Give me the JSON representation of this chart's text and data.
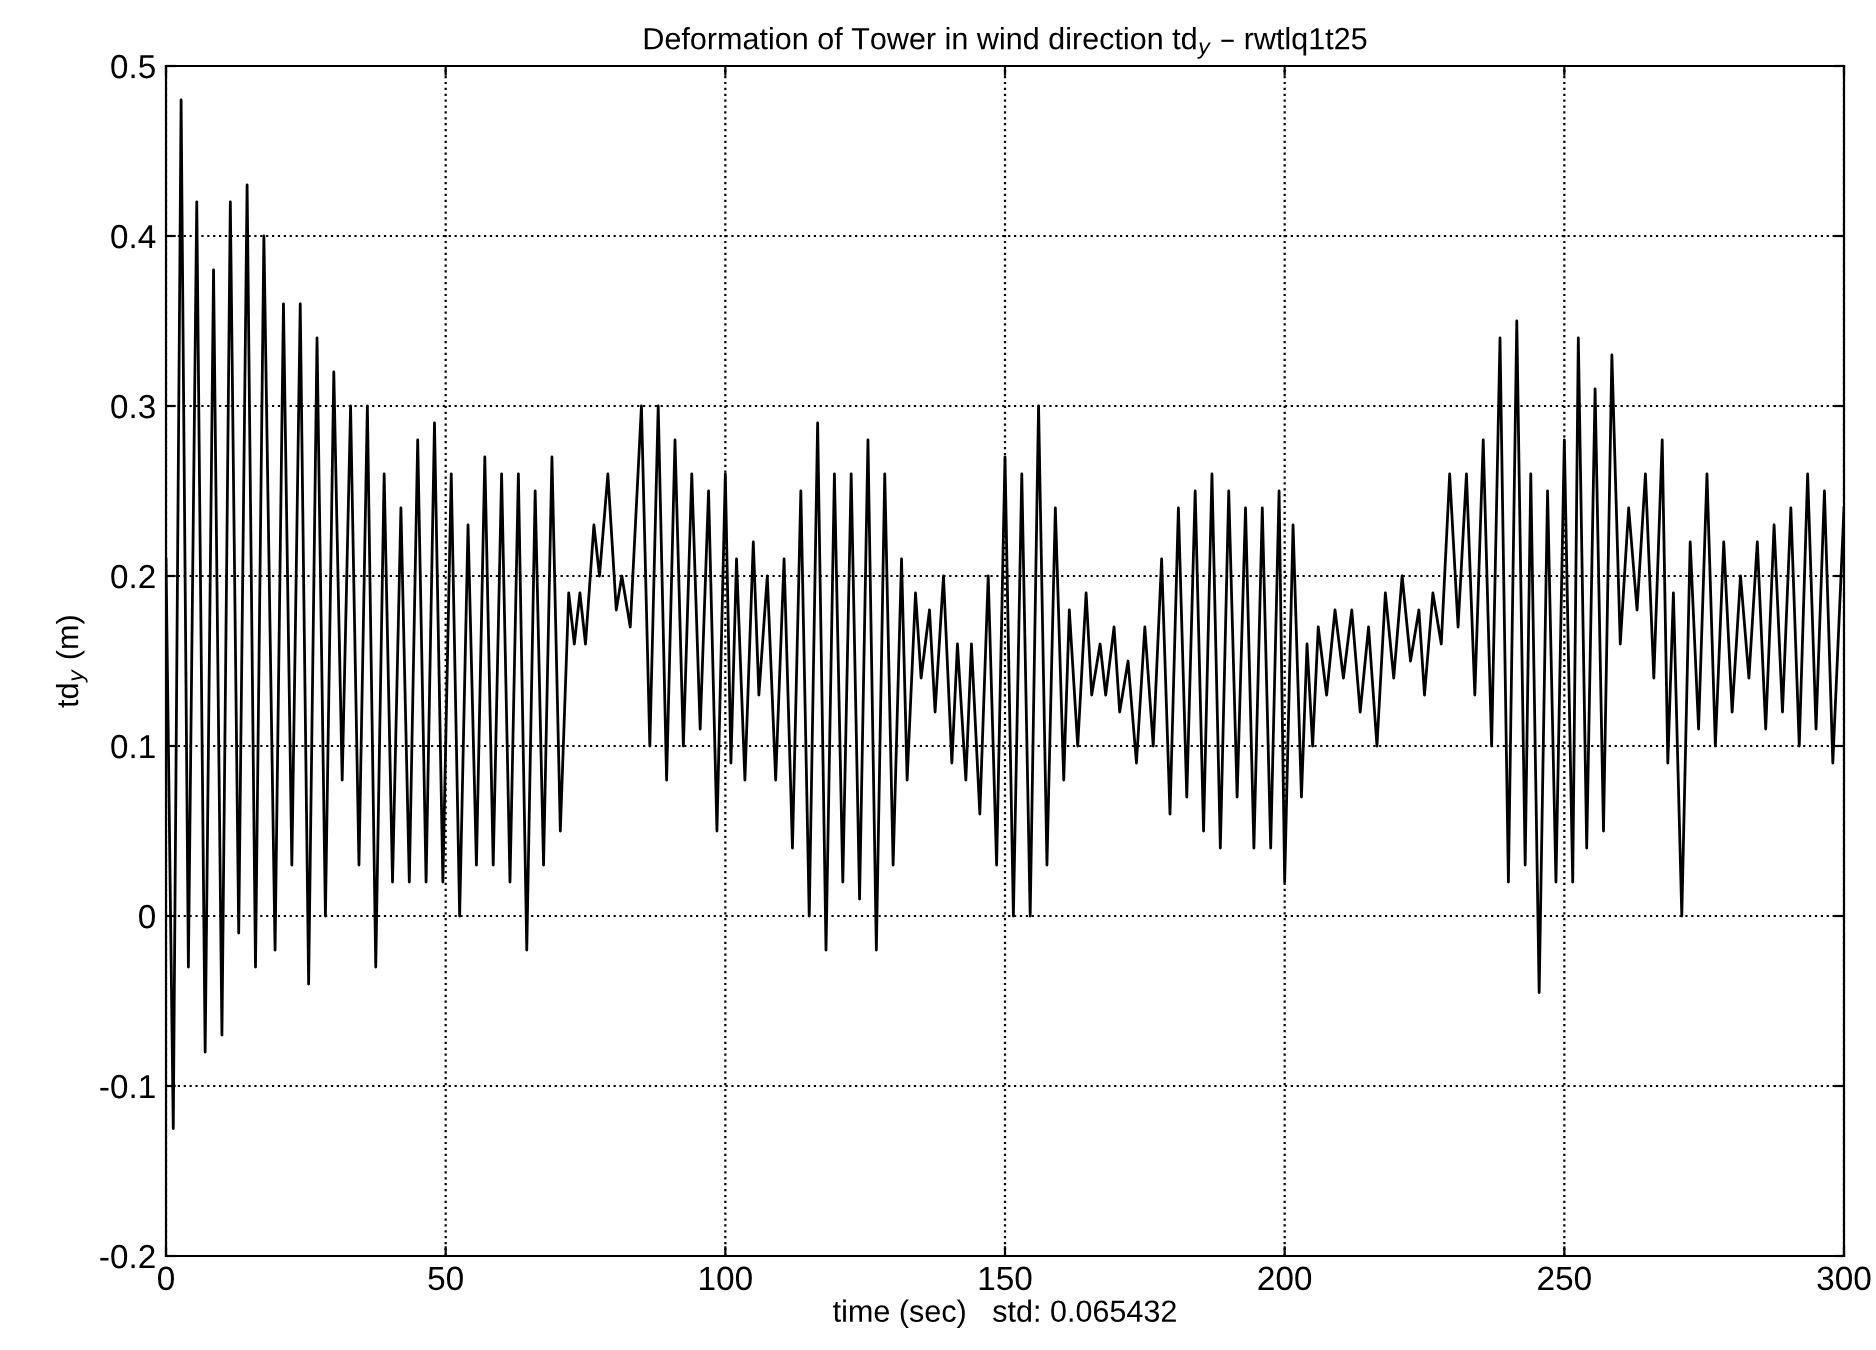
{
  "chart_data": {
    "type": "line",
    "title": "Deformation of Tower in wind direction td$_{y}$ – rwtlq1t25",
    "xlabel": "time (sec)   std: 0.065432",
    "ylabel": "td$_{y}$ (m)",
    "series": [
      {
        "color": "#000000",
        "x": [
          0,
          1.3,
          2.7,
          4,
          5.5,
          7,
          8.5,
          10,
          11.5,
          13,
          14.5,
          16,
          17.5,
          19.5,
          21,
          22.5,
          24,
          25.5,
          27,
          28.5,
          30,
          31.5,
          33,
          34.5,
          36,
          37.5,
          39,
          40.5,
          42,
          43.5,
          45,
          46.5,
          48,
          49.5,
          51,
          52.5,
          54,
          55.5,
          57,
          58.5,
          60,
          61.5,
          63,
          64.5,
          66,
          67.5,
          69,
          70.5,
          72,
          73,
          74,
          75,
          76.5,
          77.5,
          79,
          80.5,
          81.5,
          83,
          85,
          86.5,
          88,
          89.5,
          91,
          92.5,
          94,
          95.5,
          97,
          98.5,
          100,
          101,
          102,
          103.5,
          105,
          106,
          107.5,
          109,
          110.5,
          112,
          113.5,
          115,
          116.5,
          118,
          119.5,
          121,
          122.5,
          124,
          125.5,
          127,
          128.5,
          130,
          131.5,
          132.5,
          134,
          135,
          136.5,
          137.5,
          139,
          140.5,
          141.5,
          143,
          144,
          145.5,
          147,
          148.5,
          150,
          151.5,
          153,
          154.5,
          156,
          157.5,
          159,
          160.5,
          161.5,
          163,
          164.5,
          165.5,
          167,
          168,
          169.5,
          170.5,
          172,
          173.5,
          175,
          176.5,
          178,
          179.5,
          181,
          182.5,
          184,
          185.5,
          187,
          188.5,
          190,
          191.5,
          193,
          194.5,
          196,
          197.5,
          199,
          200,
          201.5,
          203,
          204,
          205,
          206,
          207.5,
          209,
          210.5,
          212,
          213.5,
          215,
          216.5,
          218,
          219.5,
          221,
          222.5,
          224,
          225,
          226.5,
          228,
          229.5,
          231,
          232.5,
          234,
          235.5,
          237,
          238.5,
          240,
          241.5,
          243,
          244,
          245.5,
          247,
          248.5,
          250,
          251.5,
          252.5,
          254,
          255.5,
          257,
          258.5,
          260,
          261.5,
          263,
          264.5,
          266,
          267.5,
          268.5,
          269.5,
          271,
          272.5,
          274,
          275.5,
          277,
          278.5,
          280,
          281.5,
          283,
          284.5,
          286,
          287.5,
          289,
          290.5,
          292,
          293.5,
          295,
          296.5,
          298,
          300
        ],
        "values": [
          0.21,
          -0.125,
          0.48,
          -0.03,
          0.42,
          -0.08,
          0.38,
          -0.07,
          0.42,
          -0.01,
          0.43,
          -0.03,
          0.4,
          -0.02,
          0.36,
          0.03,
          0.36,
          -0.04,
          0.34,
          0.0,
          0.32,
          0.08,
          0.3,
          0.03,
          0.3,
          -0.03,
          0.26,
          0.02,
          0.24,
          0.02,
          0.28,
          0.02,
          0.29,
          0.02,
          0.26,
          0.0,
          0.23,
          0.03,
          0.27,
          0.03,
          0.26,
          0.02,
          0.26,
          -0.02,
          0.25,
          0.03,
          0.27,
          0.05,
          0.19,
          0.16,
          0.19,
          0.16,
          0.23,
          0.2,
          0.26,
          0.18,
          0.2,
          0.17,
          0.3,
          0.1,
          0.3,
          0.08,
          0.28,
          0.1,
          0.26,
          0.11,
          0.25,
          0.05,
          0.26,
          0.09,
          0.21,
          0.08,
          0.22,
          0.13,
          0.2,
          0.08,
          0.21,
          0.04,
          0.25,
          0.0,
          0.29,
          -0.02,
          0.26,
          0.02,
          0.26,
          0.01,
          0.28,
          -0.02,
          0.26,
          0.03,
          0.21,
          0.08,
          0.19,
          0.14,
          0.18,
          0.12,
          0.2,
          0.09,
          0.16,
          0.08,
          0.16,
          0.06,
          0.2,
          0.03,
          0.27,
          0.0,
          0.26,
          0.0,
          0.3,
          0.03,
          0.24,
          0.08,
          0.18,
          0.1,
          0.19,
          0.13,
          0.16,
          0.13,
          0.17,
          0.12,
          0.15,
          0.09,
          0.17,
          0.1,
          0.21,
          0.06,
          0.24,
          0.07,
          0.25,
          0.05,
          0.26,
          0.04,
          0.25,
          0.07,
          0.24,
          0.04,
          0.24,
          0.04,
          0.25,
          0.02,
          0.23,
          0.07,
          0.16,
          0.1,
          0.17,
          0.13,
          0.18,
          0.14,
          0.18,
          0.12,
          0.17,
          0.1,
          0.19,
          0.14,
          0.2,
          0.15,
          0.18,
          0.13,
          0.19,
          0.16,
          0.26,
          0.17,
          0.26,
          0.13,
          0.28,
          0.1,
          0.34,
          0.02,
          0.35,
          0.03,
          0.26,
          -0.045,
          0.25,
          0.02,
          0.28,
          0.02,
          0.34,
          0.04,
          0.31,
          0.05,
          0.33,
          0.16,
          0.24,
          0.18,
          0.26,
          0.14,
          0.28,
          0.09,
          0.19,
          0.0,
          0.22,
          0.11,
          0.26,
          0.1,
          0.22,
          0.12,
          0.2,
          0.14,
          0.22,
          0.11,
          0.23,
          0.12,
          0.24,
          0.1,
          0.26,
          0.11,
          0.25,
          0.09,
          0.24
        ]
      }
    ],
    "xlim": [
      0,
      300
    ],
    "xticks": [
      0,
      50,
      100,
      150,
      200,
      250,
      300
    ],
    "ylim": [
      -0.2,
      0.5
    ],
    "yticks": [
      -0.2,
      -0.1,
      0,
      0.1,
      0.2,
      0.3,
      0.4,
      0.5
    ],
    "grid": true,
    "legend": false,
    "marker": "none",
    "line_style": "solid"
  }
}
